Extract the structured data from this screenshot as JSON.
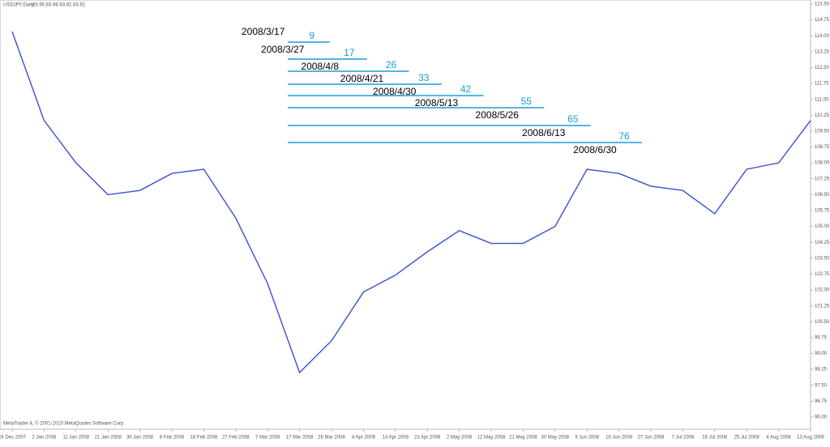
{
  "chart_data": {
    "type": "line",
    "header": "USDJPY,Daily",
    "header_values": "83.95 83.98 83.82 83.92",
    "footer": "MetaTrader 4, © 2001-2010 MetaQuotes Software Corp.",
    "categories": [
      "24 Dec 2007",
      "2 Jan 2008",
      "11 Jan 2008",
      "21 Jan 2008",
      "30 Jan 2008",
      "8 Feb 2008",
      "18 Feb 2008",
      "27 Feb 2008",
      "7 Mar 2008",
      "17 Mar 2008",
      "26 Mar 2008",
      "4 Apr 2008",
      "14 Apr 2008",
      "23 Apr 2008",
      "2 May 2008",
      "12 May 2008",
      "21 May 2008",
      "30 May 2008",
      "9 Jun 2008",
      "18 Jun 2008",
      "27 Jun 2008",
      "7 Jul 2008",
      "16 Jul 2008",
      "25 Jul 2008",
      "4 Aug 2008",
      "13 Aug 2008"
    ],
    "series": [
      {
        "name": "USDJPY,Daily",
        "color": "#3a4fd0",
        "values": [
          114.2,
          110.0,
          108.0,
          106.5,
          106.7,
          107.5,
          107.7,
          105.4,
          102.3,
          98.1,
          99.6,
          101.9,
          102.7,
          103.8,
          104.8,
          104.2,
          104.2,
          105.0,
          107.7,
          107.5,
          106.9,
          106.7,
          105.6,
          107.7,
          108.0,
          110.0
        ]
      }
    ],
    "ylim": [
      96,
      115.5
    ],
    "yticks": [
      {
        "value": 115.5,
        "label": "115.50"
      },
      {
        "value": 114.75,
        "label": "114.75"
      },
      {
        "value": 114,
        "label": "114.00"
      },
      {
        "value": 113.25,
        "label": "113.25"
      },
      {
        "value": 112.5,
        "label": "112.50"
      },
      {
        "value": 111.75,
        "label": "111.75"
      },
      {
        "value": 111,
        "label": "111.00"
      },
      {
        "value": 110.25,
        "label": "110.25"
      },
      {
        "value": 109.5,
        "label": "109.50"
      },
      {
        "value": 108.75,
        "label": "108.75"
      },
      {
        "value": 108,
        "label": "108.00"
      },
      {
        "value": 107.25,
        "label": "107.25"
      },
      {
        "value": 106.5,
        "label": "106.50"
      },
      {
        "value": 105.75,
        "label": "105.75"
      },
      {
        "value": 105,
        "label": "105.00"
      },
      {
        "value": 104.25,
        "label": "104.25"
      },
      {
        "value": 103.5,
        "label": "103.50"
      },
      {
        "value": 102.75,
        "label": "102.75"
      },
      {
        "value": 102,
        "label": "102.00"
      },
      {
        "value": 101.25,
        "label": "101.25"
      },
      {
        "value": 100.5,
        "label": "100.50"
      },
      {
        "value": 99.75,
        "label": "99.75"
      },
      {
        "value": 99,
        "label": "99.00"
      },
      {
        "value": 98.25,
        "label": "98.25"
      },
      {
        "value": 97.5,
        "label": "97.50"
      },
      {
        "value": 96.75,
        "label": "96.75"
      },
      {
        "value": 96,
        "label": "96.00"
      }
    ],
    "annotations": {
      "start": "2008/3/17",
      "color": "#1e9bd7",
      "spans": [
        {
          "date": "2008/3/27",
          "count": 9
        },
        {
          "date": "2008/4/8",
          "count": 17
        },
        {
          "date": "2008/4/21",
          "count": 26
        },
        {
          "date": "2008/4/30",
          "count": 33
        },
        {
          "date": "2008/5/13",
          "count": 42
        },
        {
          "date": "2008/5/26",
          "count": 55
        },
        {
          "date": "2008/6/13",
          "count": 65
        },
        {
          "date": "2008/6/30",
          "count": 76
        }
      ]
    }
  }
}
